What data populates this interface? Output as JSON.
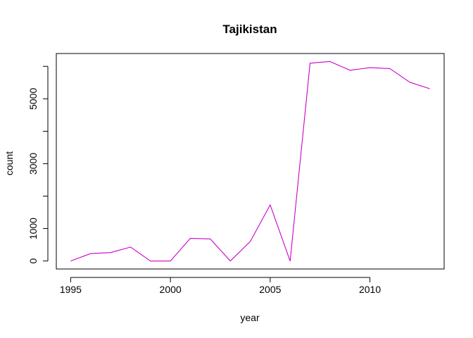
{
  "chart_data": {
    "type": "line",
    "title": "Tajikistan",
    "xlabel": "year",
    "ylabel": "count",
    "x": [
      1995,
      1996,
      1997,
      1998,
      1999,
      2000,
      2001,
      2002,
      2003,
      2004,
      2005,
      2006,
      2007,
      2008,
      2009,
      2010,
      2011,
      2012,
      2013
    ],
    "series": [
      {
        "values": [
          0,
          230,
          260,
          430,
          0,
          0,
          700,
          680,
          0,
          600,
          1730,
          0,
          6100,
          6150,
          5880,
          5960,
          5930,
          5510,
          5310
        ],
        "color": "#cc00cc"
      }
    ],
    "x_ticks": [
      1995,
      2000,
      2005,
      2010
    ],
    "x_tick_labels": [
      "1995",
      "2000",
      "2005",
      "2010"
    ],
    "y_ticks": [
      0,
      1000,
      2000,
      3000,
      4000,
      5000,
      6000
    ],
    "y_tick_labels": [
      "0",
      "1000",
      "",
      "3000",
      "",
      "5000",
      ""
    ],
    "xlim": [
      1994.28,
      2013.72
    ],
    "ylim": [
      -246,
      6396
    ],
    "grid": false,
    "legend": "none"
  }
}
